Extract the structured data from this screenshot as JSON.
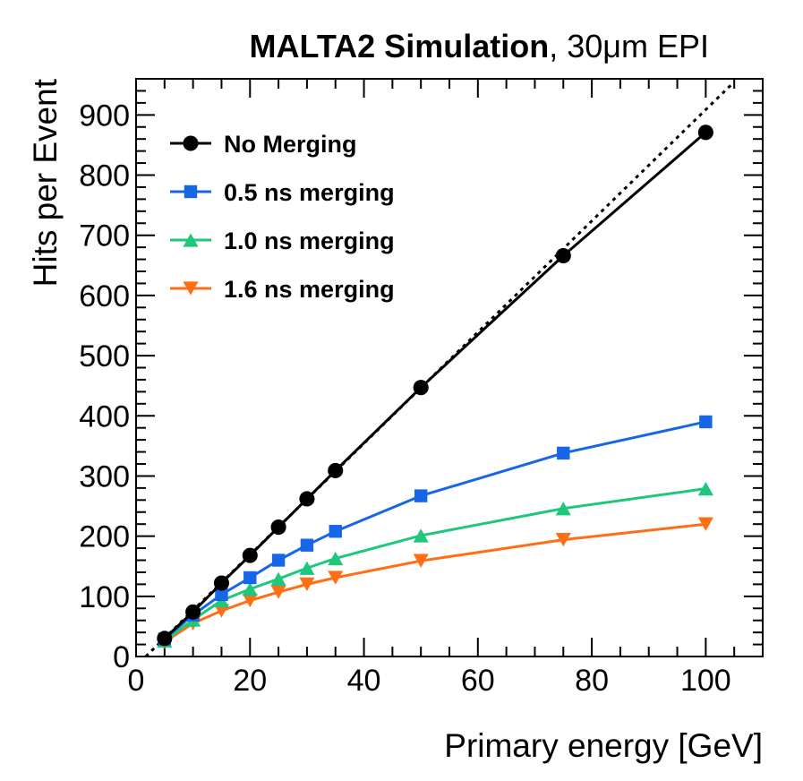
{
  "chart_data": {
    "type": "line",
    "title": "MALTA2 Simulation",
    "subtitle": ", 30μm EPI",
    "xlabel": "Primary energy [GeV]",
    "ylabel": "Hits per Event",
    "xlim": [
      0,
      110
    ],
    "ylim": [
      0,
      960
    ],
    "xticks": [
      0,
      20,
      40,
      60,
      80,
      100
    ],
    "yticks": [
      0,
      100,
      200,
      300,
      400,
      500,
      600,
      700,
      800,
      900
    ],
    "grid": false,
    "legend_position": "top-left",
    "reference_line": {
      "style": "dotted",
      "color": "#000000",
      "x": [
        1.7,
        105
      ],
      "y": [
        0,
        955
      ]
    },
    "series": [
      {
        "name": "No Merging",
        "color": "#000000",
        "marker": "circle",
        "x": [
          5,
          10,
          15,
          20,
          25,
          30,
          35,
          50,
          75,
          100
        ],
        "y": [
          30,
          74,
          122,
          168,
          215,
          262,
          309,
          447,
          666,
          871
        ]
      },
      {
        "name": "0.5 ns merging",
        "color": "#1766e8",
        "marker": "square",
        "x": [
          5,
          10,
          15,
          20,
          25,
          30,
          35,
          50,
          75,
          100
        ],
        "y": [
          29,
          69,
          103,
          131,
          160,
          185,
          208,
          267,
          338,
          390
        ]
      },
      {
        "name": "1.0 ns merging",
        "color": "#1ec77c",
        "marker": "triangle-up",
        "x": [
          5,
          10,
          15,
          20,
          25,
          30,
          35,
          50,
          75,
          100
        ],
        "y": [
          26,
          61,
          93,
          112,
          129,
          147,
          163,
          201,
          246,
          279
        ]
      },
      {
        "name": "1.6 ns merging",
        "color": "#ff6d14",
        "marker": "triangle-down",
        "x": [
          5,
          10,
          15,
          20,
          25,
          30,
          35,
          50,
          75,
          100
        ],
        "y": [
          24,
          55,
          76,
          93,
          107,
          120,
          131,
          159,
          194,
          220
        ]
      }
    ]
  }
}
